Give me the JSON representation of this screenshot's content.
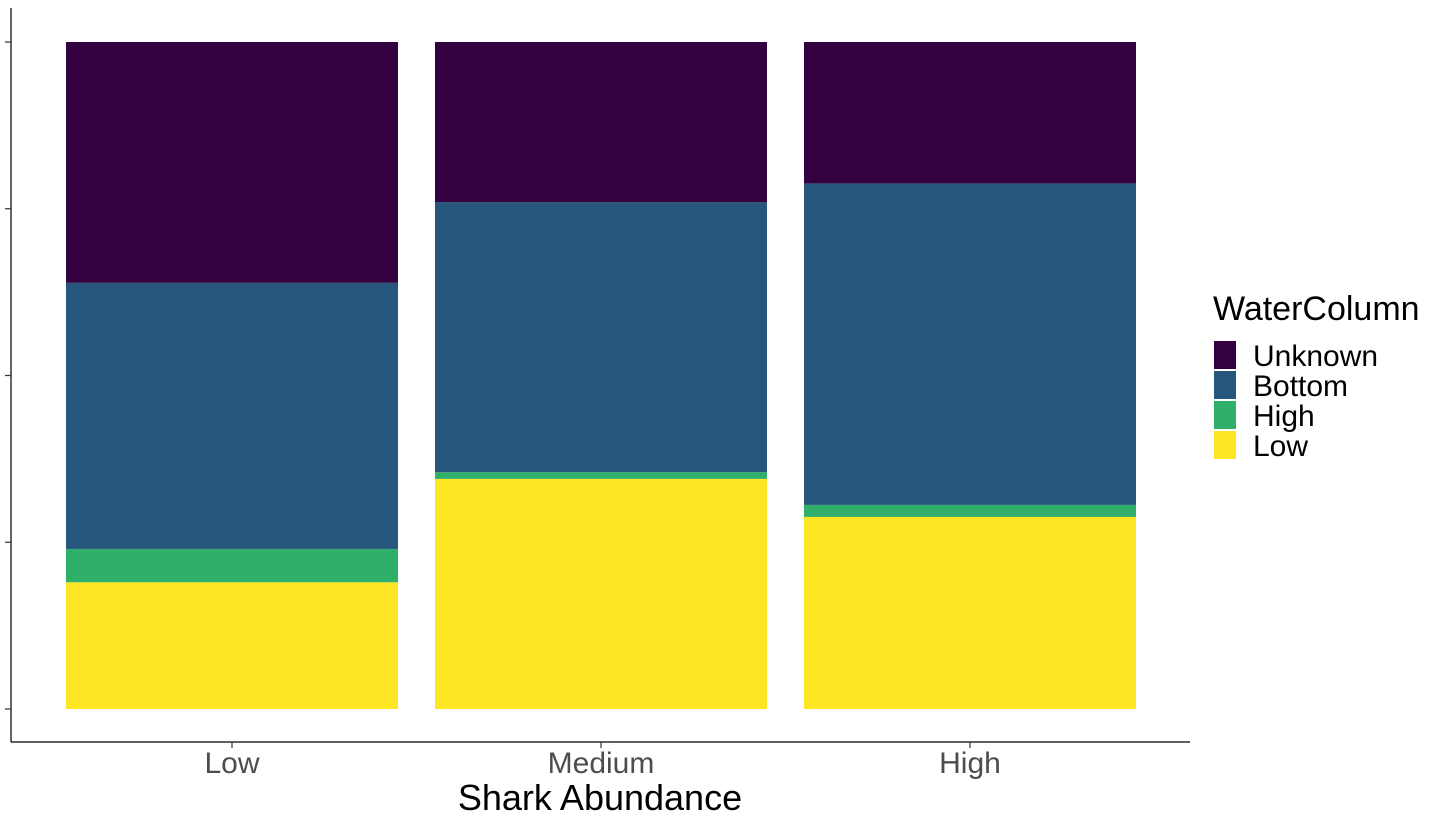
{
  "chart_data": {
    "type": "bar",
    "stacked": true,
    "normalized": true,
    "categories": [
      "Low",
      "Medium",
      "High"
    ],
    "xlabel": "Shark Abundance",
    "ylabel": "",
    "ylim": [
      0,
      1.05
    ],
    "grid": false,
    "legend": {
      "title": "WaterColumn",
      "position": "right"
    },
    "series": [
      {
        "name": "Low",
        "color": "#FDE725",
        "values": [
          0.19,
          0.345,
          0.288
        ]
      },
      {
        "name": "High",
        "color": "#2FAF6A",
        "values": [
          0.05,
          0.01,
          0.018
        ]
      },
      {
        "name": "Bottom",
        "color": "#27567C",
        "values": [
          0.399,
          0.405,
          0.482
        ]
      },
      {
        "name": "Unknown",
        "color": "#35003F",
        "values": [
          0.361,
          0.24,
          0.212
        ]
      }
    ],
    "legend_order": [
      "Unknown",
      "Bottom",
      "High",
      "Low"
    ]
  }
}
